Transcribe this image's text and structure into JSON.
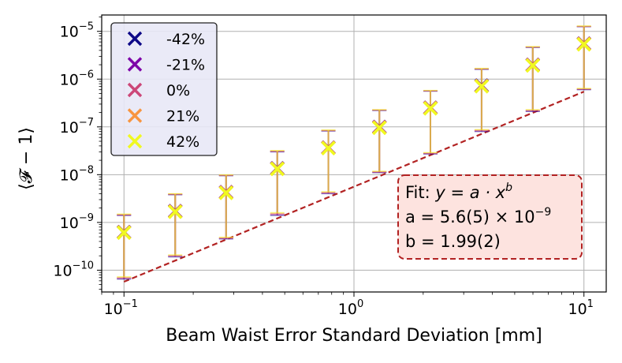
{
  "chart_data": {
    "type": "scatter",
    "title": "",
    "xlabel": "Beam Waist Error Standard Deviation [mm]",
    "ylabel": "⟨𝓕 − 1⟩",
    "xscale": "log",
    "yscale": "log",
    "xlim": [
      0.08,
      12.5
    ],
    "ylim": [
      3.5e-11,
      2.2e-05
    ],
    "grid": true,
    "x_tick_labels": [
      {
        "base": "10",
        "exp": "−1",
        "value": 0.1
      },
      {
        "base": "10",
        "exp": "0",
        "value": 1
      },
      {
        "base": "10",
        "exp": "1",
        "value": 10
      }
    ],
    "y_tick_labels": [
      {
        "base": "10",
        "exp": "−10",
        "value": 1e-10
      },
      {
        "base": "10",
        "exp": "−9",
        "value": 1e-09
      },
      {
        "base": "10",
        "exp": "−8",
        "value": 1e-08
      },
      {
        "base": "10",
        "exp": "−7",
        "value": 1e-07
      },
      {
        "base": "10",
        "exp": "−6",
        "value": 1e-06
      },
      {
        "base": "10",
        "exp": "−5",
        "value": 1e-05
      }
    ],
    "x": [
      0.1,
      0.167,
      0.278,
      0.464,
      0.774,
      1.29,
      2.15,
      3.59,
      5.99,
      10.0
    ],
    "series": [
      {
        "name": "-42%",
        "color": "#0d0887",
        "values": [
          6e-10,
          1.65e-09,
          4.1e-09,
          1.3e-08,
          3.5e-08,
          9.5e-08,
          2.4e-07,
          7e-07,
          1.9e-06,
          5.3e-06
        ],
        "err_low": [
          6.5e-11,
          1.9e-10,
          4.5e-10,
          1.4e-09,
          4e-09,
          1.1e-08,
          2.7e-08,
          8e-08,
          2.1e-07,
          6e-07
        ],
        "err_high": [
          1.4e-09,
          3.8e-09,
          9.5e-09,
          3e-08,
          8.2e-08,
          2.2e-07,
          5.6e-07,
          1.6e-06,
          4.6e-06,
          1.25e-05
        ]
      },
      {
        "name": "-21%",
        "color": "#7e03a8",
        "values": [
          6.1e-10,
          1.68e-09,
          4.2e-09,
          1.32e-08,
          3.6e-08,
          9.7e-08,
          2.45e-07,
          7.1e-07,
          1.95e-06,
          5.4e-06
        ],
        "err_low": [
          6.7e-11,
          1.95e-10,
          4.6e-10,
          1.45e-09,
          4.1e-09,
          1.12e-08,
          2.75e-08,
          8.2e-08,
          2.15e-07,
          6.1e-07
        ],
        "err_high": [
          1.42e-09,
          3.85e-09,
          9.6e-09,
          3.05e-08,
          8.3e-08,
          2.23e-07,
          5.65e-07,
          1.62e-06,
          4.65e-06,
          1.26e-05
        ]
      },
      {
        "name": "0%",
        "color": "#cc4778",
        "values": [
          6.2e-10,
          1.7e-09,
          4.25e-09,
          1.34e-08,
          3.65e-08,
          9.8e-08,
          2.5e-07,
          7.2e-07,
          1.97e-06,
          5.5e-06
        ],
        "err_low": [
          6.9e-11,
          2e-10,
          4.7e-10,
          1.5e-09,
          4.2e-09,
          1.14e-08,
          2.8e-08,
          8.4e-08,
          2.2e-07,
          6.2e-07
        ],
        "err_high": [
          1.45e-09,
          3.9e-09,
          9.7e-09,
          3.1e-08,
          8.4e-08,
          2.25e-07,
          5.7e-07,
          1.64e-06,
          4.7e-06,
          1.27e-05
        ]
      },
      {
        "name": "21%",
        "color": "#f89540",
        "values": [
          6.3e-10,
          1.72e-09,
          4.3e-09,
          1.36e-08,
          3.7e-08,
          9.9e-08,
          2.52e-07,
          7.3e-07,
          2e-06,
          5.55e-06
        ],
        "err_low": [
          7.1e-11,
          2.05e-10,
          4.8e-10,
          1.55e-09,
          4.3e-09,
          1.16e-08,
          2.85e-08,
          8.6e-08,
          2.25e-07,
          6.3e-07
        ],
        "err_high": [
          1.47e-09,
          3.95e-09,
          9.8e-09,
          3.15e-08,
          8.5e-08,
          2.27e-07,
          5.75e-07,
          1.66e-06,
          4.75e-06,
          1.28e-05
        ]
      },
      {
        "name": "42%",
        "color": "#f0f921",
        "values": [
          6.4e-10,
          1.75e-09,
          4.35e-09,
          1.38e-08,
          3.75e-08,
          1e-07,
          2.55e-07,
          7.4e-07,
          2.02e-06,
          5.6e-06
        ],
        "err_low": [
          7.3e-11,
          2.1e-10,
          4.9e-10,
          1.6e-09,
          4.4e-09,
          1.18e-08,
          2.9e-08,
          8.8e-08,
          2.3e-07,
          6.4e-07
        ],
        "err_high": [
          1.5e-09,
          4e-09,
          9.9e-09,
          3.2e-08,
          8.6e-08,
          2.3e-07,
          5.8e-07,
          1.68e-06,
          4.8e-06,
          1.3e-05
        ]
      }
    ],
    "fit": {
      "a": 5.6e-09,
      "b": 1.99,
      "color": "#b22222",
      "x_range": [
        0.1,
        10.0
      ],
      "label_line1_prefix": "Fit: ",
      "label_line1_eq": "y = a · x",
      "label_line1_sup": "b",
      "label_line2_prefix": "a = 5.6(5) × 10",
      "label_line2_sup": "−9",
      "label_line3": "b = 1.99(2)"
    },
    "legend_placement": "top-left"
  }
}
